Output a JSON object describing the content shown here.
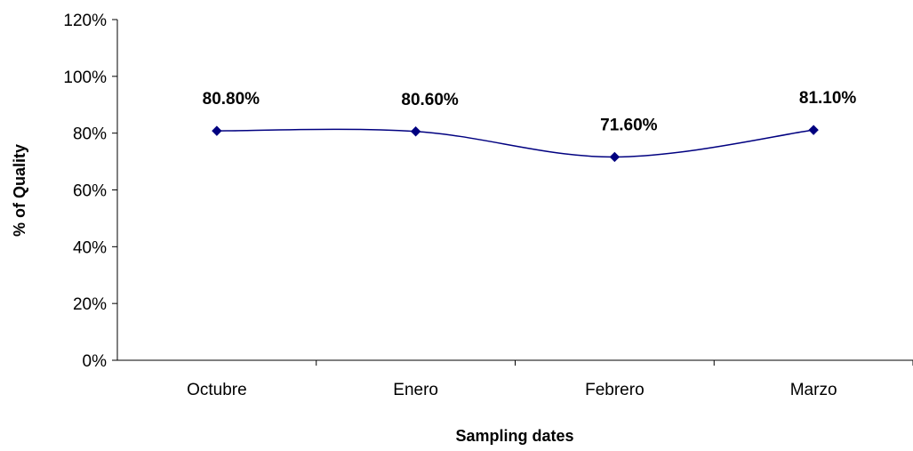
{
  "chart_data": {
    "type": "line",
    "title": "",
    "xlabel": "Sampling dates",
    "ylabel": "% of Quality",
    "categories": [
      "Octubre",
      "Enero",
      "Febrero",
      "Marzo"
    ],
    "series": [
      {
        "values": [
          80.8,
          80.6,
          71.6,
          81.1
        ],
        "data_labels": [
          "80.80%",
          "80.60%",
          "71.60%",
          "81.10%"
        ],
        "color": "#000080",
        "marker": "diamond",
        "smoothed": true
      }
    ],
    "ylim": [
      0,
      120
    ],
    "y_ticks": [
      0,
      20,
      40,
      60,
      80,
      100,
      120
    ],
    "y_tick_labels": [
      "0%",
      "20%",
      "40%",
      "60%",
      "80%",
      "100%",
      "120%"
    ],
    "grid": false,
    "legend": "none"
  }
}
